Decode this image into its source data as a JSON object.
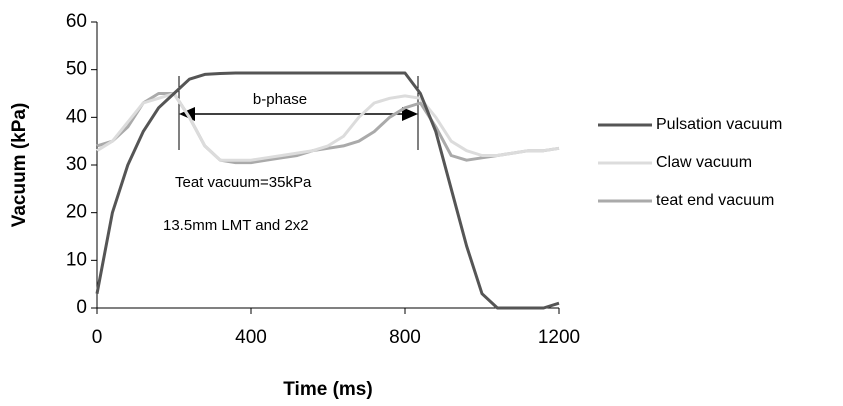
{
  "chart_data": {
    "type": "line",
    "x_label": "Time (ms)",
    "y_label": "Vacuum (kPa)",
    "xlim": [
      0,
      1200
    ],
    "xticks": [
      0,
      400,
      800,
      1200
    ],
    "ylim": [
      0,
      60
    ],
    "yticks": [
      0,
      10,
      20,
      30,
      40,
      50,
      60
    ],
    "annotations": [
      "b-phase",
      "Teat vacuum=35kPa",
      "13.5mm LMT and 2x2"
    ],
    "x": [
      0,
      40,
      80,
      120,
      160,
      200,
      240,
      280,
      320,
      360,
      400,
      440,
      480,
      520,
      560,
      600,
      640,
      680,
      720,
      760,
      800,
      840,
      880,
      920,
      960,
      1000,
      1040,
      1080,
      1120,
      1160,
      1200
    ],
    "series": [
      {
        "name": "Pulsation vacuum",
        "color": "#555555",
        "values": [
          3,
          20,
          30,
          37,
          42,
          45,
          48,
          49,
          49.2,
          49.3,
          49.3,
          49.3,
          49.3,
          49.3,
          49.3,
          49.3,
          49.3,
          49.3,
          49.3,
          49.3,
          49.3,
          45,
          37,
          25,
          13,
          3,
          0,
          0,
          0,
          0,
          1
        ]
      },
      {
        "name": "Claw  vacuum",
        "color": "#dcdcdc",
        "values": [
          33,
          35,
          39,
          43,
          44,
          45,
          40,
          34,
          31,
          31,
          31,
          31.5,
          32,
          32.5,
          33,
          34,
          36,
          40,
          43,
          44,
          44.5,
          44,
          40,
          35,
          33,
          32,
          32,
          32.5,
          33,
          33,
          33.5
        ]
      },
      {
        "name": "teat end vacuum",
        "color": "#aaaaaa",
        "values": [
          34,
          35,
          38,
          43,
          45,
          45,
          40,
          34,
          31,
          30.5,
          30.5,
          31,
          31.5,
          32,
          33,
          33.5,
          34,
          35,
          37,
          40,
          42,
          43,
          38,
          32,
          31,
          31.5,
          32,
          32.5,
          33,
          33,
          33.5
        ]
      }
    ]
  }
}
